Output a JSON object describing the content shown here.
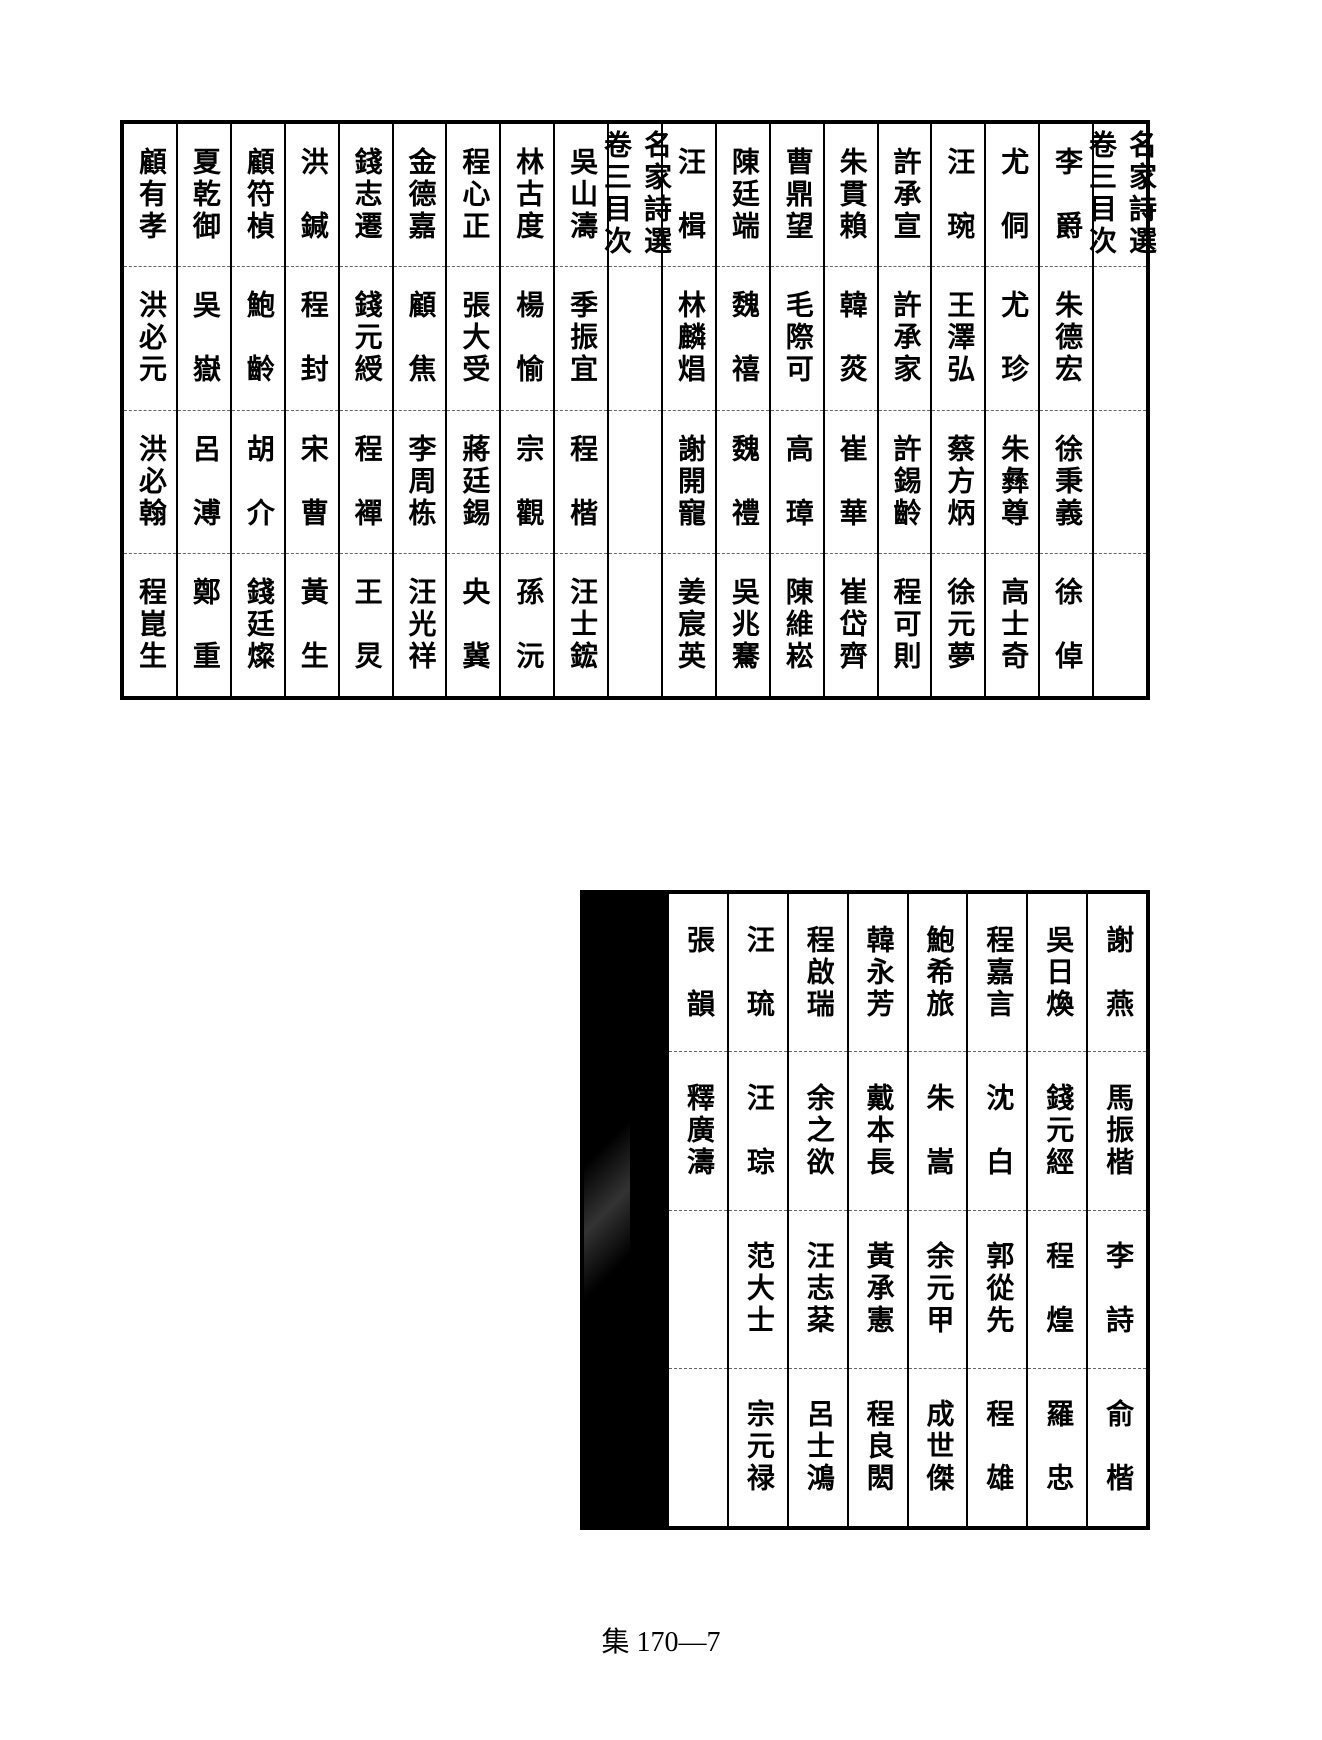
{
  "background_color": "#ffffff",
  "border_color": "#000000",
  "text_color": "#000000",
  "font_size_cell": 28,
  "footer_text": "集 170—7",
  "top_table": {
    "type": "vertical_name_table",
    "columns": [
      {
        "cells": [
          "名家詩選卷三目次",
          "",
          "",
          ""
        ]
      },
      {
        "cells": [
          "李　爵",
          "朱德宏",
          "徐秉義",
          "徐　倬"
        ]
      },
      {
        "cells": [
          "尤　侗",
          "尤　珍",
          "朱彝尊",
          "高士奇"
        ]
      },
      {
        "cells": [
          "汪　琬",
          "王澤弘",
          "蔡方炳",
          "徐元夢"
        ]
      },
      {
        "cells": [
          "許承宣",
          "許承家",
          "許錫齡",
          "程可則"
        ]
      },
      {
        "cells": [
          "朱貫賴",
          "韓　菼",
          "崔　華",
          "崔岱齊"
        ]
      },
      {
        "cells": [
          "曹鼎望",
          "毛際可",
          "高　璋",
          "陳維崧"
        ]
      },
      {
        "cells": [
          "陳廷端",
          "魏　禧",
          "魏　禮",
          "吳兆騫"
        ]
      },
      {
        "cells": [
          "汪　楫",
          "林麟焻",
          "謝開寵",
          "姜宸英"
        ]
      },
      {
        "cells": [
          "名家詩選卷三目次",
          "",
          "",
          ""
        ]
      },
      {
        "cells": [
          "吳山濤",
          "季振宜",
          "程　楷",
          "汪士鋐"
        ]
      },
      {
        "cells": [
          "林古度",
          "楊　愉",
          "宗　觀",
          "孫　沅"
        ]
      },
      {
        "cells": [
          "程心正",
          "張大受",
          "蔣廷錫",
          "央　冀"
        ]
      },
      {
        "cells": [
          "金德嘉",
          "顧　焦",
          "李周栋",
          "汪光祥"
        ]
      },
      {
        "cells": [
          "錢志遷",
          "錢元綬",
          "程　襌",
          "王　炅"
        ]
      },
      {
        "cells": [
          "洪　鍼",
          "程　封",
          "宋　曹",
          "黃　生"
        ]
      },
      {
        "cells": [
          "顧符楨",
          "鮑　齡",
          "胡　介",
          "錢廷燦"
        ]
      },
      {
        "cells": [
          "夏乾御",
          "吳　嶽",
          "呂　溥",
          "鄭　重"
        ]
      },
      {
        "cells": [
          "顧有孝",
          "洪必元",
          "洪必翰",
          "程崑生"
        ]
      }
    ]
  },
  "bottom_table": {
    "type": "vertical_name_table",
    "columns": [
      {
        "cells": [
          "謝　燕",
          "馬振楷",
          "李　詩",
          "俞　楷"
        ]
      },
      {
        "cells": [
          "吳日煥",
          "錢元經",
          "程　煌",
          "羅　忠"
        ]
      },
      {
        "cells": [
          "程嘉言",
          "沈　白",
          "郭從先",
          "程　雄"
        ]
      },
      {
        "cells": [
          "鮑希旅",
          "朱　嵩",
          "余元甲",
          "成世傑"
        ]
      },
      {
        "cells": [
          "韓永芳",
          "戴本長",
          "黃承憲",
          "程良閎"
        ]
      },
      {
        "cells": [
          "程啟瑞",
          "余之欲",
          "汪志棻",
          "呂士鴻"
        ]
      },
      {
        "cells": [
          "汪　琉",
          "汪　琮",
          "范大士",
          "宗元禄"
        ]
      },
      {
        "cells": [
          "張　韻",
          "釋廣濤",
          "",
          ""
        ]
      }
    ]
  }
}
